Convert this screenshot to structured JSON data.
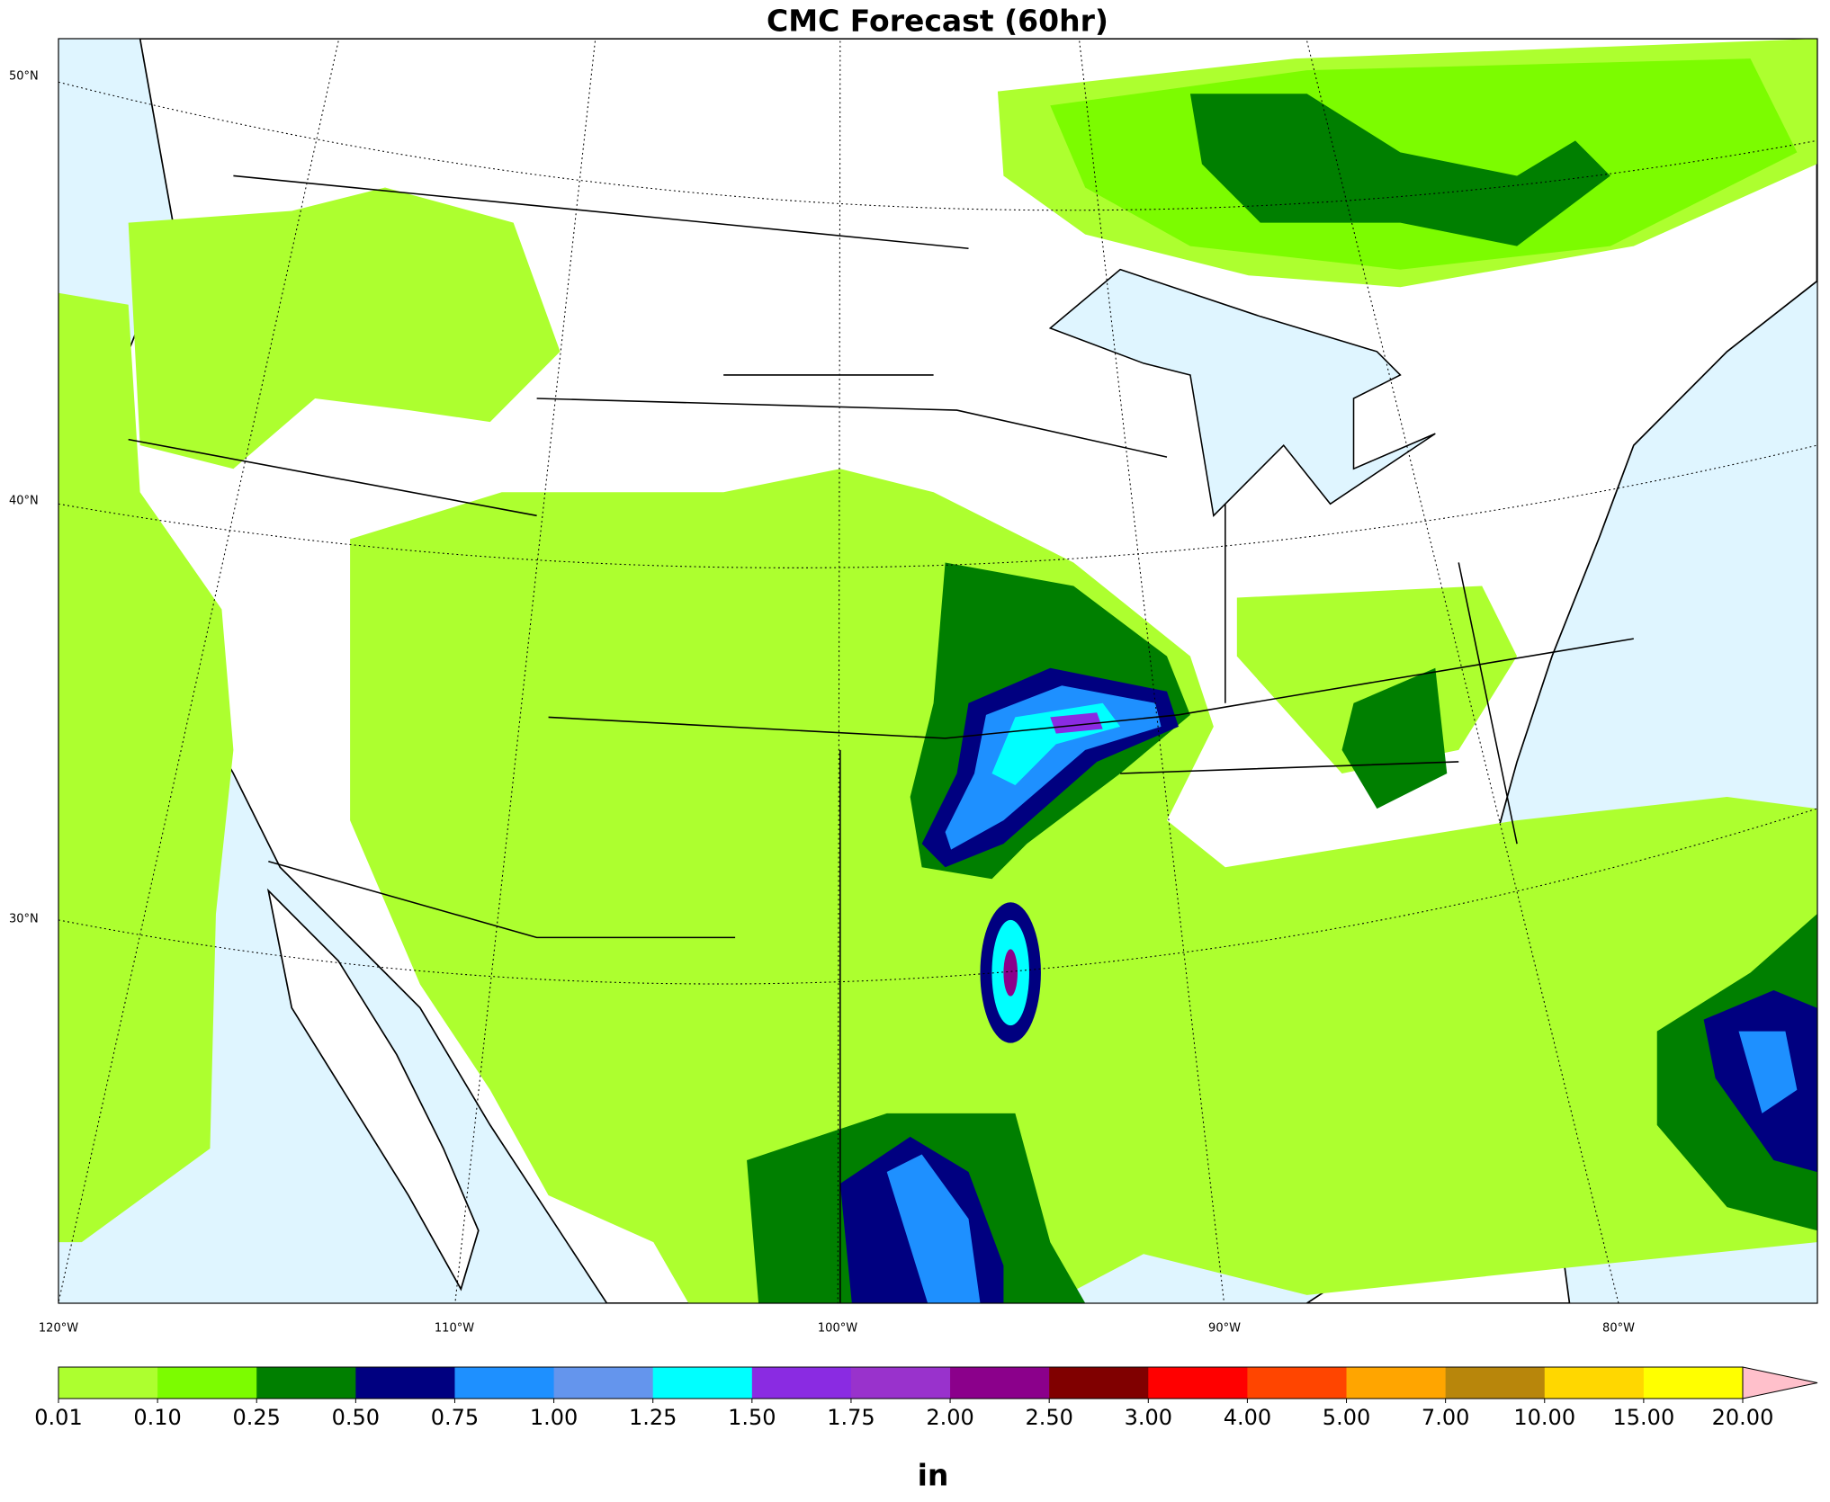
{
  "title": "CMC Forecast (60hr)",
  "map": {
    "lat_labels": [
      "50°N",
      "40°N",
      "30°N"
    ],
    "lon_labels": [
      "120°W",
      "110°W",
      "100°W",
      "90°W",
      "80°W"
    ]
  },
  "colorbar": {
    "levels": [
      {
        "value": 0.01,
        "label": "0.01"
      },
      {
        "value": 0.1,
        "label": "0.10"
      },
      {
        "value": 0.25,
        "label": "0.25"
      },
      {
        "value": 0.5,
        "label": "0.50"
      },
      {
        "value": 0.75,
        "label": "0.75"
      },
      {
        "value": 1,
        "label": "1.00"
      },
      {
        "value": 1.25,
        "label": "1.25"
      },
      {
        "value": 1.5,
        "label": "1.50"
      },
      {
        "value": 1.75,
        "label": "1.75"
      },
      {
        "value": 2,
        "label": "2.00"
      },
      {
        "value": 2.5,
        "label": "2.50"
      },
      {
        "value": 3,
        "label": "3.00"
      },
      {
        "value": 4,
        "label": "4.00"
      },
      {
        "value": 5,
        "label": "5.00"
      },
      {
        "value": 7,
        "label": "7.00"
      },
      {
        "value": 10,
        "label": "10.00"
      },
      {
        "value": 15,
        "label": "15.00"
      },
      {
        "value": 20,
        "label": "20.00"
      }
    ],
    "colors": [
      "#adff2f",
      "#7cfc00",
      "#007f00",
      "#000080",
      "#1e90ff",
      "#6495ed",
      "#00ffff",
      "#8a2be2",
      "#9932cc",
      "#8b008b",
      "#800000",
      "#ff0000",
      "#ff4500",
      "#ffa500",
      "#b8860b",
      "#ffd700",
      "#ffff00"
    ],
    "extend_color": "#ffc0cb",
    "label": "in"
  }
}
